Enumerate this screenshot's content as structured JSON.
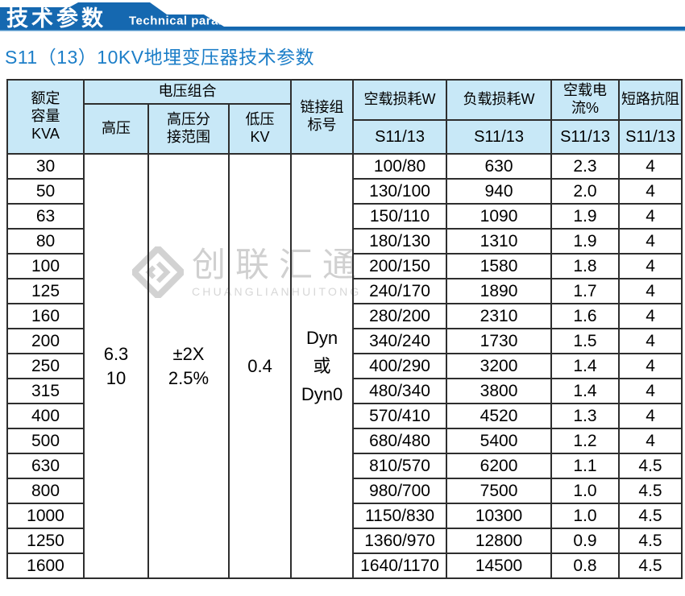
{
  "colors": {
    "banner_blue": "#1568b0",
    "banner_line_light": "#7db4dd",
    "title_blue": "#1c7ec8",
    "header_cell_bg": "#c8e8f7",
    "table_border": "#2e2e2e",
    "watermark_gray": "#d2d2d2"
  },
  "banner": {
    "title_zh": "技术参数",
    "title_en": "Technical parameter"
  },
  "page_title": "S11（13）10KV地埋变压器技术参数",
  "watermark": {
    "name_zh": "创联汇通",
    "name_en": "CHUANGLIANHUITONG"
  },
  "table": {
    "headers": {
      "rated_capacity": "额定\n容量\nKVA",
      "voltage_combination": "电压组合",
      "hv": "高压",
      "hv_tap_range": "高压分\n接范围",
      "lv": "低压\nKV",
      "vector_group": "链接组\n标号",
      "no_load_loss": "空载损耗W",
      "load_loss": "负载损耗W",
      "no_load_current": "空载电流%",
      "impedance": "短路抗阻",
      "series_no_load_loss": "S11/13",
      "series_load_loss": "S11/13",
      "series_no_load_current": "S11/13",
      "series_impedance": "S11/13"
    },
    "merged": {
      "hv_voltage": "6.3\n10",
      "hv_tap_range": "±2X\n2.5%",
      "lv_voltage": "0.4",
      "vector_group": "Dyn\n或\nDyn0"
    },
    "rows": [
      {
        "kva": "30",
        "no_load_loss": "100/80",
        "load_loss": "630",
        "no_load_current": "2.3",
        "impedance": "4"
      },
      {
        "kva": "50",
        "no_load_loss": "130/100",
        "load_loss": "940",
        "no_load_current": "2.0",
        "impedance": "4"
      },
      {
        "kva": "63",
        "no_load_loss": "150/110",
        "load_loss": "1090",
        "no_load_current": "1.9",
        "impedance": "4"
      },
      {
        "kva": "80",
        "no_load_loss": "180/130",
        "load_loss": "1310",
        "no_load_current": "1.9",
        "impedance": "4"
      },
      {
        "kva": "100",
        "no_load_loss": "200/150",
        "load_loss": "1580",
        "no_load_current": "1.8",
        "impedance": "4"
      },
      {
        "kva": "125",
        "no_load_loss": "240/170",
        "load_loss": "1890",
        "no_load_current": "1.7",
        "impedance": "4"
      },
      {
        "kva": "160",
        "no_load_loss": "280/200",
        "load_loss": "2310",
        "no_load_current": "1.6",
        "impedance": "4"
      },
      {
        "kva": "200",
        "no_load_loss": "340/240",
        "load_loss": "1730",
        "no_load_current": "1.5",
        "impedance": "4"
      },
      {
        "kva": "250",
        "no_load_loss": "400/290",
        "load_loss": "3200",
        "no_load_current": "1.4",
        "impedance": "4"
      },
      {
        "kva": "315",
        "no_load_loss": "480/340",
        "load_loss": "3800",
        "no_load_current": "1.4",
        "impedance": "4"
      },
      {
        "kva": "400",
        "no_load_loss": "570/410",
        "load_loss": "4520",
        "no_load_current": "1.3",
        "impedance": "4"
      },
      {
        "kva": "500",
        "no_load_loss": "680/480",
        "load_loss": "5400",
        "no_load_current": "1.2",
        "impedance": "4"
      },
      {
        "kva": "630",
        "no_load_loss": "810/570",
        "load_loss": "6200",
        "no_load_current": "1.1",
        "impedance": "4.5"
      },
      {
        "kva": "800",
        "no_load_loss": "980/700",
        "load_loss": "7500",
        "no_load_current": "1.0",
        "impedance": "4.5"
      },
      {
        "kva": "1000",
        "no_load_loss": "1150/830",
        "load_loss": "10300",
        "no_load_current": "1.0",
        "impedance": "4.5"
      },
      {
        "kva": "1250",
        "no_load_loss": "1360/970",
        "load_loss": "12800",
        "no_load_current": "0.9",
        "impedance": "4.5"
      },
      {
        "kva": "1600",
        "no_load_loss": "1640/1170",
        "load_loss": "14500",
        "no_load_current": "0.8",
        "impedance": "4.5"
      }
    ]
  }
}
